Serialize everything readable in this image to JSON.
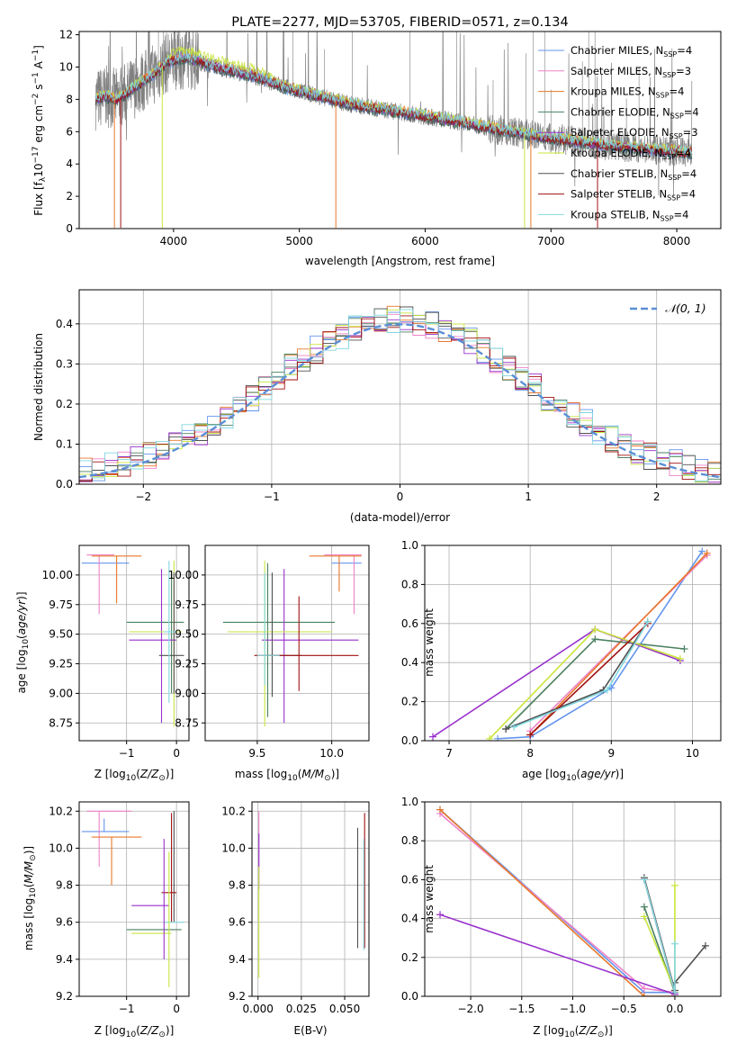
{
  "colors": {
    "Chabrier MILES": "#6495ed",
    "Salpeter MILES": "#ee82c8",
    "Kroupa MILES": "#e8782a",
    "Chabrier ELODIE": "#4a8060",
    "Salpeter ELODIE": "#9932cc",
    "Kroupa ELODIE": "#c8e63c",
    "Chabrier STELIB": "#505050",
    "Salpeter STELIB": "#a01010",
    "Kroupa STELIB": "#80d8e0",
    "data": "#808080",
    "normal": "#5b8fd6"
  },
  "chart_data": [
    {
      "type": "line",
      "title": "PLATE=2277, MJD=53705, FIBERID=0571, z=0.134",
      "xlabel": "wavelength [Angstrom, rest frame]",
      "ylabel": "Flux [f_λ 10^-17 erg cm^-2 s^-1 A^-1]",
      "xlim": [
        3250,
        8350
      ],
      "ylim": [
        0,
        12.2
      ],
      "xticks": [
        "4000",
        "5000",
        "6000",
        "7000",
        "8000"
      ],
      "yticks": [
        "0",
        "2",
        "4",
        "6",
        "8",
        "10",
        "12"
      ],
      "legend_position": "right",
      "legend": [
        {
          "name": "Chabrier MILES",
          "nssp": "4"
        },
        {
          "name": "Salpeter MILES",
          "nssp": "3"
        },
        {
          "name": "Kroupa MILES",
          "nssp": "4"
        },
        {
          "name": "Chabrier ELODIE",
          "nssp": "4"
        },
        {
          "name": "Salpeter ELODIE",
          "nssp": "3"
        },
        {
          "name": "Kroupa ELODIE",
          "nssp": "4"
        },
        {
          "name": "Chabrier STELIB",
          "nssp": "4"
        },
        {
          "name": "Salpeter STELIB",
          "nssp": "4"
        },
        {
          "name": "Kroupa STELIB",
          "nssp": "4"
        }
      ],
      "continuum": [
        [
          3380,
          8.0
        ],
        [
          3450,
          8.2
        ],
        [
          3550,
          8.0
        ],
        [
          3700,
          8.8
        ],
        [
          3850,
          9.6
        ],
        [
          3950,
          10.3
        ],
        [
          4100,
          10.6
        ],
        [
          4300,
          10.1
        ],
        [
          4500,
          9.7
        ],
        [
          4700,
          9.3
        ],
        [
          4900,
          8.7
        ],
        [
          5100,
          8.3
        ],
        [
          5400,
          7.7
        ],
        [
          5800,
          7.2
        ],
        [
          6200,
          6.7
        ],
        [
          6600,
          6.1
        ],
        [
          7000,
          5.6
        ],
        [
          7400,
          5.2
        ],
        [
          7800,
          4.9
        ],
        [
          8100,
          4.7
        ]
      ],
      "grid": false
    },
    {
      "type": "step",
      "xlabel": "(data-model)/error",
      "ylabel": "Normed distribution",
      "xlim": [
        -2.5,
        2.5
      ],
      "ylim": [
        0,
        0.485
      ],
      "xticks": [
        "−2",
        "−1",
        "0",
        "1",
        "2"
      ],
      "yticks": [
        "0.0",
        "0.1",
        "0.2",
        "0.3",
        "0.4"
      ],
      "legend": "𝒩(0, 1)",
      "bin_width": 0.1,
      "grid": true
    },
    {
      "type": "errorbar",
      "xlabel": "Z [log10(Z/Z⊙)]",
      "ylabel": "age  [log10(age/yr)]",
      "xlim": [
        -1.95,
        0.25
      ],
      "ylim": [
        8.6,
        10.25
      ],
      "xticks": [
        "−1",
        "0"
      ],
      "yticks": [
        "8.75",
        "9.00",
        "9.25",
        "9.50",
        "9.75",
        "10.00"
      ],
      "points": [
        {
          "model": "Chabrier MILES",
          "x": -1.45,
          "xerr": [
            0.45,
            0.5
          ],
          "y": 10.1,
          "yerr": [
            0.0,
            0.0
          ]
        },
        {
          "model": "Salpeter MILES",
          "x": -1.55,
          "xerr": [
            0.25,
            0.3
          ],
          "y": 10.17,
          "yerr": [
            0.5,
            0.0
          ]
        },
        {
          "model": "Kroupa MILES",
          "x": -1.2,
          "xerr": [
            0.5,
            0.5
          ],
          "y": 10.16,
          "yerr": [
            0.4,
            0.0
          ]
        },
        {
          "model": "Chabrier ELODIE",
          "x": -0.1,
          "xerr": [
            0.9,
            0.25
          ],
          "y": 9.6,
          "yerr": [
            0.6,
            0.4
          ]
        },
        {
          "model": "Salpeter ELODIE",
          "x": -0.3,
          "xerr": [
            0.65,
            0.3
          ],
          "y": 9.45,
          "yerr": [
            0.7,
            0.6
          ]
        },
        {
          "model": "Kroupa ELODIE",
          "x": -0.05,
          "xerr": [
            0.9,
            0.15
          ],
          "y": 9.52,
          "yerr": [
            0.8,
            0.6
          ]
        },
        {
          "model": "Chabrier STELIB",
          "x": -0.05,
          "xerr": [
            0.3,
            0.2
          ],
          "y": 9.32,
          "yerr": [
            0.32,
            0.7
          ]
        },
        {
          "model": "Kroupa STELIB",
          "x": -0.15,
          "xerr": [
            0.1,
            0.15
          ],
          "y": 9.52,
          "yerr": [
            0.6,
            0.6
          ]
        }
      ]
    },
    {
      "type": "errorbar",
      "xlabel": "mass [log10(M/M⊙)]",
      "ylabel": "",
      "xlim": [
        9.15,
        10.25
      ],
      "ylim": [
        8.6,
        10.25
      ],
      "xticks": [
        "9.5",
        "10.0"
      ],
      "yticks": [
        "8.75",
        "9.00",
        "9.25",
        "9.50",
        "9.75",
        "10.00"
      ],
      "points": [
        {
          "model": "Chabrier MILES",
          "x": 10.1,
          "xerr": [
            0.1,
            0.1
          ],
          "y": 10.1,
          "yerr": [
            0.0,
            0.0
          ]
        },
        {
          "model": "Salpeter MILES",
          "x": 10.15,
          "xerr": [
            0.2,
            0.05
          ],
          "y": 10.17,
          "yerr": [
            0.5,
            0.0
          ]
        },
        {
          "model": "Kroupa MILES",
          "x": 10.05,
          "xerr": [
            0.2,
            0.15
          ],
          "y": 10.16,
          "yerr": [
            0.3,
            0.0
          ]
        },
        {
          "model": "Chabrier ELODIE",
          "x": 9.57,
          "xerr": [
            0.3,
            0.45
          ],
          "y": 9.6,
          "yerr": [
            0.8,
            0.5
          ]
        },
        {
          "model": "Salpeter ELODIE",
          "x": 9.68,
          "xerr": [
            0.15,
            0.5
          ],
          "y": 9.45,
          "yerr": [
            0.7,
            0.6
          ]
        },
        {
          "model": "Kroupa ELODIE",
          "x": 9.55,
          "xerr": [
            0.25,
            0.45
          ],
          "y": 9.52,
          "yerr": [
            0.8,
            0.6
          ]
        },
        {
          "model": "Chabrier STELIB",
          "x": 9.6,
          "xerr": [
            0.05,
            0.2
          ],
          "y": 9.32,
          "yerr": [
            0.35,
            0.7
          ]
        },
        {
          "model": "Salpeter STELIB",
          "x": 9.78,
          "xerr": [
            0.3,
            0.4
          ],
          "y": 9.32,
          "yerr": [
            0.3,
            0.5
          ]
        },
        {
          "model": "Kroupa STELIB",
          "x": 9.55,
          "xerr": [
            0.05,
            0.1
          ],
          "y": 9.32,
          "yerr": [
            0.25,
            0.7
          ]
        }
      ]
    },
    {
      "type": "line",
      "xlabel": "age  [log10(age/yr)]",
      "ylabel": "mass weight",
      "xlim": [
        6.7,
        10.35
      ],
      "ylim": [
        0,
        1.0
      ],
      "xticks": [
        "7",
        "8",
        "9",
        "10"
      ],
      "yticks": [
        "0.0",
        "0.2",
        "0.4",
        "0.6",
        "0.8",
        "1.0"
      ],
      "grid": true,
      "series": [
        {
          "model": "Chabrier MILES",
          "x": [
            7.6,
            8.0,
            9.0,
            10.12
          ],
          "y": [
            0.01,
            0.02,
            0.27,
            0.97
          ]
        },
        {
          "model": "Salpeter MILES",
          "x": [
            8.0,
            10.18
          ],
          "y": [
            0.05,
            0.95
          ]
        },
        {
          "model": "Kroupa MILES",
          "x": [
            8.0,
            10.18
          ],
          "y": [
            0.03,
            0.96
          ]
        },
        {
          "model": "Chabrier ELODIE",
          "x": [
            7.7,
            8.8,
            9.9
          ],
          "y": [
            0.06,
            0.52,
            0.47
          ]
        },
        {
          "model": "Salpeter ELODIE",
          "x": [
            6.8,
            8.8,
            9.85
          ],
          "y": [
            0.02,
            0.57,
            0.41
          ]
        },
        {
          "model": "Kroupa ELODIE",
          "x": [
            7.5,
            8.8,
            9.85
          ],
          "y": [
            0.01,
            0.57,
            0.42
          ]
        },
        {
          "model": "Chabrier STELIB",
          "x": [
            7.7,
            8.9,
            9.45
          ],
          "y": [
            0.06,
            0.26,
            0.61
          ]
        },
        {
          "model": "Salpeter STELIB",
          "x": [
            8.0,
            9.45
          ],
          "y": [
            0.03,
            0.6
          ]
        },
        {
          "model": "Kroupa STELIB",
          "x": [
            7.8,
            8.95,
            9.45
          ],
          "y": [
            0.07,
            0.26,
            0.61
          ]
        }
      ]
    },
    {
      "type": "errorbar",
      "xlabel": "Z [log10(Z/Z⊙)]",
      "ylabel": "mass [log10(M/M⊙)]",
      "xlim": [
        -1.95,
        0.25
      ],
      "ylim": [
        9.2,
        10.25
      ],
      "xticks": [
        "−1",
        "0"
      ],
      "yticks": [
        "9.2",
        "9.4",
        "9.6",
        "9.8",
        "10.0",
        "10.2"
      ],
      "points": [
        {
          "model": "Chabrier MILES",
          "x": -1.45,
          "xerr": [
            0.45,
            0.5
          ],
          "y": 10.09,
          "yerr": [
            0.0,
            0.07
          ]
        },
        {
          "model": "Salpeter MILES",
          "x": -1.55,
          "xerr": [
            0.25,
            0.65
          ],
          "y": 10.2,
          "yerr": [
            0.3,
            0.0
          ]
        },
        {
          "model": "Kroupa MILES",
          "x": -1.3,
          "xerr": [
            0.4,
            0.6
          ],
          "y": 10.06,
          "yerr": [
            0.26,
            0.0
          ]
        },
        {
          "model": "Chabrier ELODIE",
          "x": -0.45,
          "xerr": [
            0.55,
            0.55
          ],
          "y": 9.56,
          "yerr": [
            0.0,
            0.0
          ]
        },
        {
          "model": "Salpeter ELODIE",
          "x": -0.5,
          "xerr": [
            0.4,
            0.35
          ],
          "y": 9.69,
          "yerr": [
            0.0,
            0.0
          ]
        },
        {
          "model": "Kroupa ELODIE",
          "x": -0.5,
          "xerr": [
            0.4,
            0.4
          ],
          "y": 9.54,
          "yerr": [
            0.0,
            0.0
          ]
        },
        {
          "model": "Chabrier STELIB",
          "x": -0.05,
          "xerr": [
            0.0,
            0.0
          ],
          "y": 9.6,
          "yerr": [
            0.0,
            0.6
          ]
        },
        {
          "model": "Salpeter STELIB",
          "x": -0.1,
          "xerr": [
            0.2,
            0.1
          ],
          "y": 9.76,
          "yerr": [
            0.16,
            0.43
          ]
        },
        {
          "model": "Kroupa STELIB",
          "x": -0.05,
          "xerr": [
            0.2,
            0.2
          ],
          "y": 9.6,
          "yerr": [
            0.0,
            0.0
          ]
        },
        {
          "model": "Salpeter ELODIE",
          "x": -0.25,
          "xerr": [
            0.0,
            0.0
          ],
          "y": 9.7,
          "yerr": [
            0.3,
            0.35
          ]
        },
        {
          "model": "Kroupa ELODIE",
          "x": -0.15,
          "xerr": [
            0.0,
            0.0
          ],
          "y": 9.55,
          "yerr": [
            0.3,
            0.43
          ]
        }
      ]
    },
    {
      "type": "errorbar",
      "xlabel": "E(B-V)",
      "ylabel": "",
      "xlim": [
        -0.0035,
        0.064
      ],
      "ylim": [
        9.2,
        10.25
      ],
      "xticks": [
        "0.000",
        "0.025",
        "0.050"
      ],
      "yticks": [
        "9.2",
        "9.4",
        "9.6",
        "9.8",
        "10.0",
        "10.2"
      ],
      "points": [
        {
          "model": "Salpeter MILES",
          "x": 0.0005,
          "y": 10.2,
          "yerr": [
            0.3,
            0.0
          ]
        },
        {
          "model": "Salpeter ELODIE",
          "x": 0.0005,
          "y": 10.08,
          "yerr": [
            0.3,
            0.0
          ]
        },
        {
          "model": "Kroupa ELODIE",
          "x": 0.0005,
          "y": 9.6,
          "yerr": [
            0.3,
            0.3
          ]
        },
        {
          "model": "Chabrier STELIB",
          "x": 0.0575,
          "y": 9.76,
          "yerr": [
            0.3,
            0.35
          ]
        },
        {
          "model": "Salpeter STELIB",
          "x": 0.0615,
          "y": 9.76,
          "yerr": [
            0.3,
            0.43
          ]
        },
        {
          "model": "Kroupa STELIB",
          "x": 0.061,
          "y": 9.7,
          "yerr": [
            0.25,
            0.35
          ]
        }
      ]
    },
    {
      "type": "line",
      "xlabel": "Z [log10(Z/Z⊙)]",
      "ylabel": "mass weight",
      "xlim": [
        -2.45,
        0.45
      ],
      "ylim": [
        0,
        1.0
      ],
      "xticks": [
        "−2.0",
        "−1.5",
        "−1.0",
        "−0.5",
        "0.0"
      ],
      "yticks": [
        "0.0",
        "0.2",
        "0.4",
        "0.6",
        "0.8",
        "1.0"
      ],
      "grid": true,
      "series": [
        {
          "model": "Chabrier MILES",
          "x": [
            -2.3,
            -0.3,
            0.0
          ],
          "y": [
            0.96,
            0.02,
            0.02
          ]
        },
        {
          "model": "Salpeter MILES",
          "x": [
            -2.3,
            -0.3,
            0.0
          ],
          "y": [
            0.94,
            0.04,
            0.02
          ]
        },
        {
          "model": "Kroupa MILES",
          "x": [
            -2.3,
            -0.3,
            0.0
          ],
          "y": [
            0.96,
            0.0,
            0.0
          ]
        },
        {
          "model": "Chabrier ELODIE",
          "x": [
            -0.3,
            0.0
          ],
          "y": [
            0.46,
            0.02
          ]
        },
        {
          "model": "Salpeter ELODIE",
          "x": [
            -2.3,
            0.0
          ],
          "y": [
            0.42,
            0.01
          ]
        },
        {
          "model": "Kroupa ELODIE",
          "x": [
            -0.3,
            0.0,
            0.0
          ],
          "y": [
            0.41,
            0.03,
            0.57
          ]
        },
        {
          "model": "Chabrier STELIB",
          "x": [
            -0.3,
            0.0,
            0.0,
            0.3
          ],
          "y": [
            0.61,
            0.03,
            0.07,
            0.26
          ]
        },
        {
          "model": "Salpeter STELIB",
          "x": [
            -0.3,
            0.0
          ],
          "y": [
            0.6,
            0.02
          ]
        },
        {
          "model": "Kroupa STELIB",
          "x": [
            -0.3,
            0.0,
            0.0
          ],
          "y": [
            0.6,
            0.02,
            0.27
          ]
        }
      ]
    }
  ]
}
